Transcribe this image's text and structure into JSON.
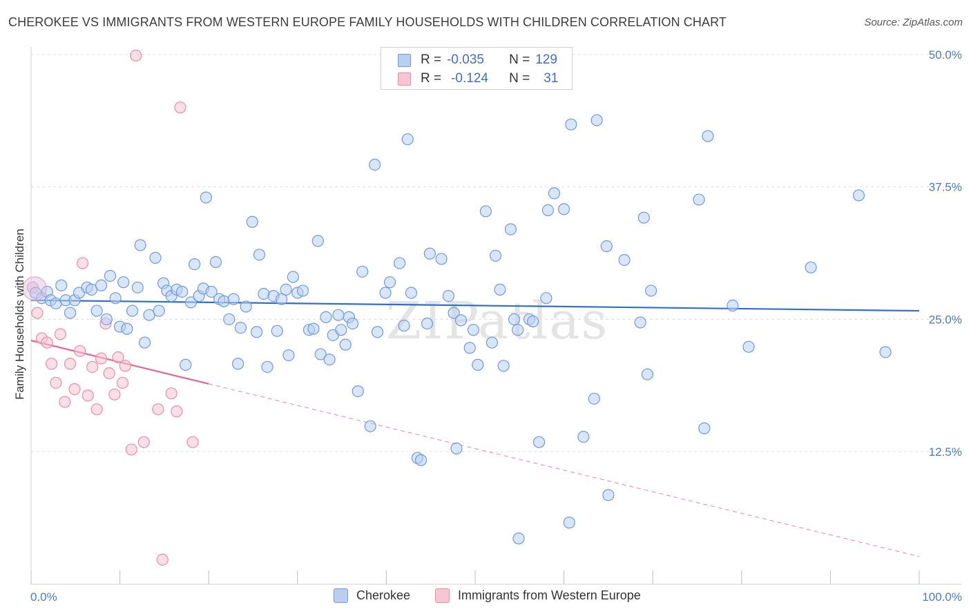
{
  "header": {
    "title": "CHEROKEE VS IMMIGRANTS FROM WESTERN EUROPE FAMILY HOUSEHOLDS WITH CHILDREN CORRELATION CHART",
    "source": "Source: ZipAtlas.com"
  },
  "watermark": "ZIPatlas",
  "legend": {
    "rows": [
      {
        "r_label": "R =",
        "r_value": "-0.035",
        "n_label": "N =",
        "n_value": "129"
      },
      {
        "r_label": "R =",
        "r_value": "-0.124",
        "n_label": "N =",
        "n_value": "31"
      }
    ]
  },
  "bottom_legend": {
    "items": [
      {
        "label": "Cherokee",
        "color": "#6c9ae0"
      },
      {
        "label": "Immigrants from Western Europe",
        "color": "#ec8aa8"
      }
    ]
  },
  "chart_data": {
    "type": "scatter",
    "xlabel": "",
    "ylabel": "Family Households with Children",
    "xlim": [
      0,
      100
    ],
    "ylim": [
      0,
      52.5
    ],
    "x_tick_labels": [
      "0.0%",
      "100.0%"
    ],
    "y_ticks": [
      12.5,
      25.0,
      37.5,
      50.0
    ],
    "y_tick_labels": [
      "12.5%",
      "25.0%",
      "37.5%",
      "50.0%"
    ],
    "grid": true,
    "colors": {
      "cherokee_fill": "#b9cff2",
      "cherokee_stroke": "#6c9ae0",
      "cherokee_line": "#2f6fcc",
      "immigrants_fill": "#f7c5d3",
      "immigrants_stroke": "#ec8aa8",
      "immigrants_line": "#e8648d"
    },
    "series": [
      {
        "name": "Cherokee",
        "trend": {
          "x": [
            0,
            100
          ],
          "y": [
            26.8,
            25.8
          ]
        },
        "points": [
          {
            "x": 0.5,
            "y": 27.5
          },
          {
            "x": 1.2,
            "y": 27.0
          },
          {
            "x": 1.8,
            "y": 27.6
          },
          {
            "x": 2.2,
            "y": 26.8
          },
          {
            "x": 2.8,
            "y": 26.5
          },
          {
            "x": 3.4,
            "y": 28.2
          },
          {
            "x": 3.9,
            "y": 26.8
          },
          {
            "x": 4.4,
            "y": 25.6
          },
          {
            "x": 4.9,
            "y": 26.8
          },
          {
            "x": 5.4,
            "y": 27.5
          },
          {
            "x": 6.3,
            "y": 28.0
          },
          {
            "x": 6.8,
            "y": 27.8
          },
          {
            "x": 7.4,
            "y": 25.8
          },
          {
            "x": 7.9,
            "y": 28.2
          },
          {
            "x": 8.5,
            "y": 25.0
          },
          {
            "x": 8.9,
            "y": 29.1
          },
          {
            "x": 9.5,
            "y": 27.0
          },
          {
            "x": 10.0,
            "y": 24.3
          },
          {
            "x": 10.4,
            "y": 28.5
          },
          {
            "x": 10.8,
            "y": 24.1
          },
          {
            "x": 11.4,
            "y": 25.8
          },
          {
            "x": 12.0,
            "y": 28.0
          },
          {
            "x": 12.3,
            "y": 32.0
          },
          {
            "x": 12.8,
            "y": 22.8
          },
          {
            "x": 13.3,
            "y": 25.4
          },
          {
            "x": 14.0,
            "y": 30.8
          },
          {
            "x": 14.4,
            "y": 25.8
          },
          {
            "x": 14.9,
            "y": 28.4
          },
          {
            "x": 15.3,
            "y": 27.7
          },
          {
            "x": 15.8,
            "y": 27.2
          },
          {
            "x": 16.4,
            "y": 27.8
          },
          {
            "x": 17.0,
            "y": 27.6
          },
          {
            "x": 17.4,
            "y": 20.7
          },
          {
            "x": 18.0,
            "y": 26.6
          },
          {
            "x": 18.4,
            "y": 30.2
          },
          {
            "x": 18.9,
            "y": 27.2
          },
          {
            "x": 19.4,
            "y": 27.9
          },
          {
            "x": 19.7,
            "y": 36.5
          },
          {
            "x": 20.3,
            "y": 27.6
          },
          {
            "x": 20.8,
            "y": 30.4
          },
          {
            "x": 21.2,
            "y": 26.9
          },
          {
            "x": 21.7,
            "y": 26.7
          },
          {
            "x": 22.3,
            "y": 25.0
          },
          {
            "x": 22.8,
            "y": 26.9
          },
          {
            "x": 23.3,
            "y": 20.8
          },
          {
            "x": 23.6,
            "y": 24.2
          },
          {
            "x": 24.2,
            "y": 26.2
          },
          {
            "x": 24.9,
            "y": 34.2
          },
          {
            "x": 25.4,
            "y": 23.8
          },
          {
            "x": 25.7,
            "y": 31.1
          },
          {
            "x": 26.2,
            "y": 27.4
          },
          {
            "x": 26.6,
            "y": 20.5
          },
          {
            "x": 27.3,
            "y": 27.2
          },
          {
            "x": 27.7,
            "y": 23.9
          },
          {
            "x": 28.2,
            "y": 26.9
          },
          {
            "x": 28.7,
            "y": 27.8
          },
          {
            "x": 29.0,
            "y": 21.6
          },
          {
            "x": 29.5,
            "y": 29.0
          },
          {
            "x": 30.0,
            "y": 27.5
          },
          {
            "x": 30.6,
            "y": 27.7
          },
          {
            "x": 31.3,
            "y": 24.0
          },
          {
            "x": 31.8,
            "y": 24.1
          },
          {
            "x": 32.3,
            "y": 32.4
          },
          {
            "x": 32.6,
            "y": 21.7
          },
          {
            "x": 33.2,
            "y": 25.2
          },
          {
            "x": 33.6,
            "y": 21.2
          },
          {
            "x": 34.0,
            "y": 23.5
          },
          {
            "x": 34.6,
            "y": 25.4
          },
          {
            "x": 34.9,
            "y": 24.0
          },
          {
            "x": 35.4,
            "y": 22.6
          },
          {
            "x": 35.8,
            "y": 25.2
          },
          {
            "x": 36.2,
            "y": 24.6
          },
          {
            "x": 36.8,
            "y": 18.2
          },
          {
            "x": 37.3,
            "y": 29.5
          },
          {
            "x": 38.2,
            "y": 14.9
          },
          {
            "x": 38.7,
            "y": 39.6
          },
          {
            "x": 39.0,
            "y": 23.8
          },
          {
            "x": 39.9,
            "y": 27.5
          },
          {
            "x": 40.4,
            "y": 28.5
          },
          {
            "x": 41.5,
            "y": 30.3
          },
          {
            "x": 42.0,
            "y": 24.4
          },
          {
            "x": 42.4,
            "y": 42.0
          },
          {
            "x": 42.8,
            "y": 27.5
          },
          {
            "x": 43.5,
            "y": 11.9
          },
          {
            "x": 43.9,
            "y": 11.7
          },
          {
            "x": 44.6,
            "y": 24.6
          },
          {
            "x": 44.9,
            "y": 31.2
          },
          {
            "x": 46.2,
            "y": 30.7
          },
          {
            "x": 47.0,
            "y": 27.2
          },
          {
            "x": 47.6,
            "y": 25.6
          },
          {
            "x": 47.9,
            "y": 12.8
          },
          {
            "x": 48.4,
            "y": 24.9
          },
          {
            "x": 49.4,
            "y": 22.3
          },
          {
            "x": 49.8,
            "y": 24.0
          },
          {
            "x": 50.3,
            "y": 20.7
          },
          {
            "x": 51.2,
            "y": 35.2
          },
          {
            "x": 51.9,
            "y": 22.8
          },
          {
            "x": 52.3,
            "y": 31.0
          },
          {
            "x": 52.8,
            "y": 27.8
          },
          {
            "x": 53.2,
            "y": 20.6
          },
          {
            "x": 54.0,
            "y": 33.5
          },
          {
            "x": 54.4,
            "y": 25.0
          },
          {
            "x": 54.8,
            "y": 24.0
          },
          {
            "x": 54.9,
            "y": 4.3
          },
          {
            "x": 56.1,
            "y": 25.0
          },
          {
            "x": 56.5,
            "y": 24.8
          },
          {
            "x": 57.2,
            "y": 13.4
          },
          {
            "x": 58.0,
            "y": 27.0
          },
          {
            "x": 58.2,
            "y": 35.3
          },
          {
            "x": 58.9,
            "y": 36.9
          },
          {
            "x": 60.0,
            "y": 35.4
          },
          {
            "x": 60.6,
            "y": 5.8
          },
          {
            "x": 60.8,
            "y": 43.4
          },
          {
            "x": 62.2,
            "y": 13.9
          },
          {
            "x": 63.4,
            "y": 17.5
          },
          {
            "x": 63.7,
            "y": 43.8
          },
          {
            "x": 64.8,
            "y": 31.9
          },
          {
            "x": 65.0,
            "y": 8.4
          },
          {
            "x": 66.8,
            "y": 30.6
          },
          {
            "x": 68.6,
            "y": 24.7
          },
          {
            "x": 69.0,
            "y": 34.6
          },
          {
            "x": 69.4,
            "y": 19.8
          },
          {
            "x": 69.8,
            "y": 27.7
          },
          {
            "x": 75.2,
            "y": 36.3
          },
          {
            "x": 75.8,
            "y": 14.7
          },
          {
            "x": 76.2,
            "y": 42.3
          },
          {
            "x": 79.0,
            "y": 26.3
          },
          {
            "x": 80.8,
            "y": 22.4
          },
          {
            "x": 87.8,
            "y": 29.9
          },
          {
            "x": 93.2,
            "y": 36.7
          },
          {
            "x": 96.2,
            "y": 21.9
          }
        ]
      },
      {
        "name": "Immigrants from Western Europe",
        "trend": {
          "x": [
            0,
            20
          ],
          "y": [
            23.0,
            18.9
          ]
        },
        "trend_extended": {
          "x": [
            20,
            100
          ],
          "y": [
            18.9,
            2.6
          ]
        },
        "points": [
          {
            "x": 0.2,
            "y": 28.0
          },
          {
            "x": 0.7,
            "y": 25.6
          },
          {
            "x": 1.2,
            "y": 23.2
          },
          {
            "x": 1.8,
            "y": 22.8
          },
          {
            "x": 2.3,
            "y": 20.8
          },
          {
            "x": 2.8,
            "y": 19.0
          },
          {
            "x": 3.3,
            "y": 23.6
          },
          {
            "x": 3.8,
            "y": 17.2
          },
          {
            "x": 4.4,
            "y": 20.8
          },
          {
            "x": 4.9,
            "y": 18.4
          },
          {
            "x": 5.5,
            "y": 22.0
          },
          {
            "x": 5.8,
            "y": 30.3
          },
          {
            "x": 6.4,
            "y": 17.8
          },
          {
            "x": 6.9,
            "y": 20.5
          },
          {
            "x": 7.4,
            "y": 16.5
          },
          {
            "x": 7.9,
            "y": 21.3
          },
          {
            "x": 8.4,
            "y": 24.6
          },
          {
            "x": 8.8,
            "y": 19.9
          },
          {
            "x": 9.4,
            "y": 17.9
          },
          {
            "x": 9.8,
            "y": 21.4
          },
          {
            "x": 10.3,
            "y": 19.0
          },
          {
            "x": 10.6,
            "y": 20.6
          },
          {
            "x": 11.3,
            "y": 12.7
          },
          {
            "x": 12.7,
            "y": 13.4
          },
          {
            "x": 11.8,
            "y": 49.9
          },
          {
            "x": 14.3,
            "y": 16.5
          },
          {
            "x": 14.8,
            "y": 2.3
          },
          {
            "x": 15.8,
            "y": 18.0
          },
          {
            "x": 16.4,
            "y": 16.3
          },
          {
            "x": 16.8,
            "y": 45.0
          },
          {
            "x": 18.2,
            "y": 13.4
          }
        ]
      }
    ]
  }
}
